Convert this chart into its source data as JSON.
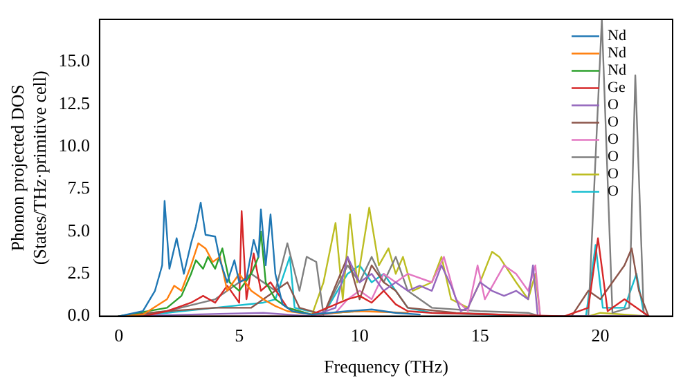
{
  "chart_data": {
    "type": "line",
    "xlabel": "Frequency (THz)",
    "ylabel": "Phonon projected DOS\n(States/THz·primitive cell)",
    "xlim": [
      -0.8,
      23
    ],
    "ylim": [
      0,
      17.5
    ],
    "xticks": [
      0,
      5,
      10,
      15,
      20
    ],
    "yticks": [
      {
        "value": 0,
        "label": "0.0"
      },
      2.5,
      {
        "value": 5,
        "label": "5.0"
      },
      7.5,
      {
        "value": 10,
        "label": "10.0"
      },
      12.5,
      {
        "value": 15,
        "label": "15.0"
      }
    ],
    "grid": false,
    "legend": "top right",
    "marker": "none",
    "line_style": "solid",
    "series": [
      {
        "name": "Nd",
        "color": "#1f77b4",
        "x": [
          0,
          1,
          1.5,
          1.8,
          1.9,
          2.1,
          2.4,
          2.7,
          3.0,
          3.2,
          3.4,
          3.6,
          4.0,
          4.2,
          4.5,
          4.8,
          5.0,
          5.3,
          5.6,
          5.8,
          5.9,
          6.1,
          6.3,
          6.5,
          6.8,
          7.2,
          8,
          9.5,
          10.5,
          11.5,
          12.5
        ],
        "values": [
          0,
          0.3,
          1.5,
          3,
          6.8,
          2.8,
          4.6,
          2.5,
          4.3,
          5.3,
          6.7,
          4.8,
          4.7,
          3.3,
          2,
          3.3,
          2,
          2.2,
          4.5,
          3.5,
          6.3,
          3,
          6,
          2.5,
          0.7,
          0.3,
          0.1,
          0.3,
          0.4,
          0.2,
          0.1
        ]
      },
      {
        "name": "Nd",
        "color": "#ff7f0e",
        "x": [
          0,
          1,
          2,
          2.3,
          2.6,
          3.0,
          3.3,
          3.6,
          3.9,
          4.2,
          4.5,
          5.0,
          5.5,
          6.0,
          6.5,
          7,
          8,
          10,
          12
        ],
        "values": [
          0,
          0.1,
          1,
          1.8,
          1.5,
          3,
          4.3,
          4,
          3.2,
          3.5,
          1.5,
          2.5,
          1.5,
          1,
          0.6,
          0.3,
          0.1,
          0.3,
          0.2
        ]
      },
      {
        "name": "Nd",
        "color": "#2ca02c",
        "x": [
          0,
          2,
          2.6,
          3.0,
          3.2,
          3.5,
          3.7,
          4.0,
          4.3,
          4.6,
          5.0,
          5.5,
          5.8,
          5.9,
          6.1,
          6.5,
          7,
          8,
          10
        ],
        "values": [
          0,
          0.5,
          1.2,
          2.5,
          3.3,
          2.8,
          3.5,
          2.8,
          4,
          2,
          1.5,
          2.5,
          3.5,
          5,
          2,
          1,
          0.5,
          0.1,
          0.3
        ]
      },
      {
        "name": "Ge",
        "color": "#d62728",
        "x": [
          0,
          1,
          2,
          3,
          3.5,
          4,
          4.5,
          5,
          5.1,
          5.3,
          5.6,
          5.9,
          6.3,
          7,
          8,
          9.5,
          10,
          10.5,
          11,
          11.5,
          12,
          13,
          18.5,
          19.5,
          19.9,
          20.3,
          21,
          21.5,
          22
        ],
        "values": [
          0,
          0,
          0.3,
          0.8,
          1.2,
          0.8,
          1.8,
          0.8,
          6.2,
          1,
          3.7,
          1.5,
          2,
          0.5,
          0.1,
          1,
          1.2,
          0.8,
          1.5,
          0.7,
          0.3,
          0.2,
          0,
          0.5,
          4.6,
          0.3,
          1,
          0.5,
          0
        ]
      },
      {
        "name": "O",
        "color": "#9467bd",
        "x": [
          0,
          3,
          6,
          8,
          9,
          9.5,
          10,
          10.5,
          11,
          11.5,
          12,
          12.5,
          13,
          13.4,
          13.8,
          14.2,
          14.5,
          15,
          15.5,
          16,
          16.5,
          17,
          17.2,
          17.4,
          22
        ],
        "values": [
          0,
          0.1,
          0.2,
          0,
          0.5,
          3.5,
          2,
          2.5,
          1.5,
          2,
          1.5,
          1.8,
          1.5,
          3,
          1.8,
          0.3,
          0.5,
          2,
          1.5,
          1.2,
          1.5,
          1,
          3,
          0,
          0
        ]
      },
      {
        "name": "O",
        "color": "#8c564b",
        "x": [
          0,
          2,
          4,
          5.5,
          6.5,
          7,
          7.5,
          8.5,
          9.5,
          10,
          10.5,
          11,
          11.5,
          12,
          14,
          17.5,
          18.8,
          19.5,
          20,
          20.5,
          21,
          21.3,
          21.6,
          22
        ],
        "values": [
          0,
          0.3,
          0.5,
          0.5,
          1.5,
          2,
          0.5,
          0.1,
          3.5,
          1,
          3,
          2,
          1.5,
          0.5,
          0.2,
          0,
          0,
          1.5,
          1,
          2,
          3,
          4,
          1.5,
          0
        ]
      },
      {
        "name": "O",
        "color": "#e377c2",
        "x": [
          0,
          8,
          9,
          9.5,
          10,
          10.5,
          11,
          11.5,
          12,
          13,
          13.5,
          14,
          14.5,
          14.9,
          15.2,
          16,
          16.5,
          17,
          17.3,
          17.5,
          22
        ],
        "values": [
          0,
          0,
          0.2,
          1,
          1.5,
          1,
          2.5,
          2,
          2.5,
          2,
          3.5,
          1,
          0.3,
          3,
          1,
          3,
          2.5,
          1.5,
          3,
          0,
          0
        ]
      },
      {
        "name": "O",
        "color": "#7f7f7f",
        "x": [
          0,
          2,
          4,
          4.5,
          5.5,
          6.5,
          7,
          7.5,
          7.8,
          8.2,
          8.5,
          9.5,
          10,
          10.5,
          11,
          11.5,
          12,
          13,
          15,
          17,
          17.5,
          19.5,
          20.06,
          20.5,
          21.2,
          21.45,
          21.8,
          22
        ],
        "values": [
          0,
          0.3,
          1,
          1.5,
          2.5,
          1.5,
          4.3,
          1.5,
          3.5,
          3.2,
          0.1,
          3,
          2,
          3.5,
          2,
          3.5,
          1.5,
          0.5,
          0.3,
          0.2,
          0,
          0,
          17.5,
          0.2,
          0.5,
          14.2,
          0.2,
          0
        ]
      },
      {
        "name": "O",
        "color": "#bcbd22",
        "x": [
          0,
          8,
          8.5,
          9,
          9.3,
          9.6,
          9.9,
          10.4,
          10.8,
          11.2,
          11.5,
          11.8,
          12.2,
          13,
          13.4,
          13.8,
          14.5,
          15,
          15.5,
          15.8,
          16.5,
          17,
          17.3,
          17.5,
          19.5,
          20,
          22
        ],
        "values": [
          0,
          0,
          2,
          5.5,
          1,
          6,
          2,
          6.4,
          3,
          4,
          2.5,
          3.5,
          1.5,
          2,
          3.5,
          1,
          0.5,
          2,
          3.8,
          3.5,
          2,
          1,
          2.5,
          0,
          0,
          0.2,
          0
        ]
      },
      {
        "name": "O",
        "color": "#17becf",
        "x": [
          0,
          2,
          4,
          6,
          6.5,
          7.1,
          7.3,
          8.5,
          9.5,
          10,
          10.5,
          11,
          11.5,
          12,
          13,
          17.5,
          19.4,
          19.8,
          20.1,
          21,
          21.5,
          21.8,
          22
        ],
        "values": [
          0,
          0.2,
          0.5,
          0.8,
          1,
          3.5,
          0.5,
          0.1,
          2.5,
          3,
          2,
          2.5,
          1.5,
          0.5,
          0.2,
          0,
          0,
          4.2,
          0.5,
          0.5,
          2.5,
          0.2,
          0
        ]
      }
    ]
  }
}
